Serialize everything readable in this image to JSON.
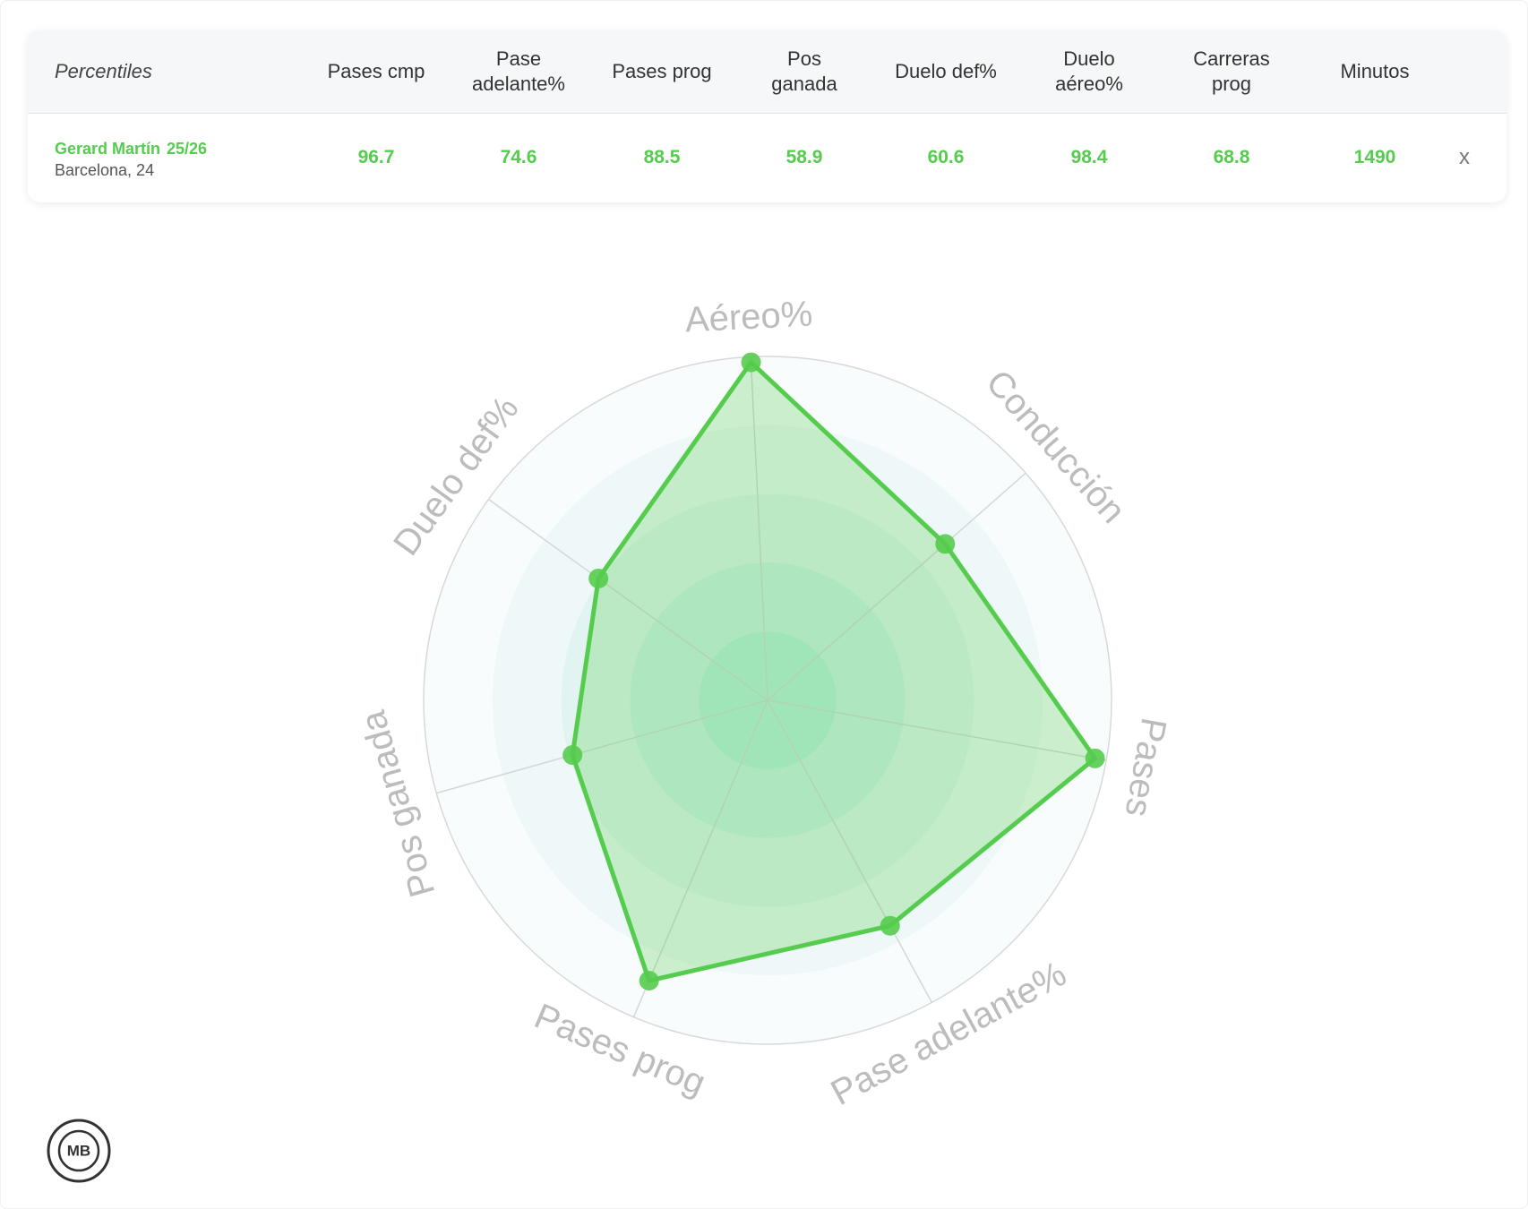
{
  "table": {
    "columns": [
      "Percentiles",
      "Pases cmp",
      "Pase\nadelante%",
      "Pases prog",
      "Pos\nganada",
      "Duelo def%",
      "Duelo\naéreo%",
      "Carreras\nprog",
      "Minutos"
    ],
    "rows": [
      {
        "player": "Gerard Martín",
        "season": "25/26",
        "team": "Barcelona, 24",
        "values": [
          96.7,
          74.6,
          88.5,
          58.9,
          60.6,
          98.4,
          68.8,
          1490
        ],
        "close": "x"
      }
    ]
  },
  "chart_data": {
    "type": "radar",
    "categories": [
      "Aéreo%",
      "Conducción",
      "Pases",
      "Pase adelante%",
      "Pases prog",
      "Pos ganada",
      "Duelo def%"
    ],
    "values": [
      98.4,
      68.8,
      96.7,
      74.6,
      88.5,
      58.9,
      60.6
    ],
    "color": "#55cc4e",
    "ylim": [
      0,
      100
    ],
    "rticks": [
      20,
      40,
      60,
      80,
      100
    ]
  },
  "logo": "MB"
}
